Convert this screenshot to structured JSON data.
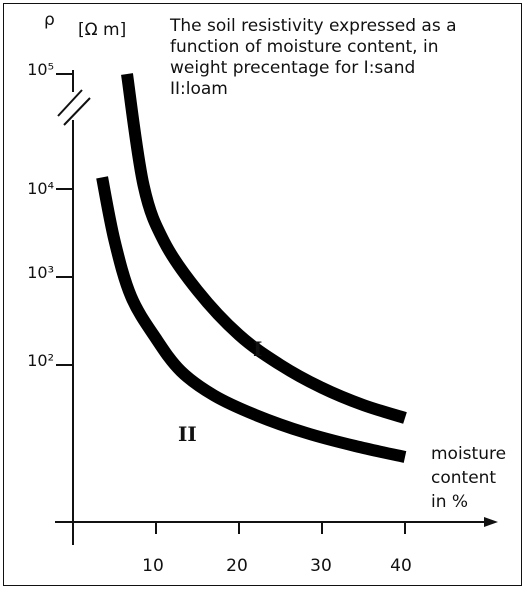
{
  "chart_data": {
    "type": "line",
    "title_lines": [
      "The soil resistivity expressed as a",
      "function of moisture content, in",
      "weight precentage for I:sand",
      "II:loam"
    ],
    "ylabel_symbol": "ρ",
    "ylabel_unit": "[Ω m]",
    "xlabel_lines": [
      "moisture",
      "content",
      "in %"
    ],
    "y_scale": "log (broken axis between 10^4 and 10^5)",
    "y_ticks": [
      {
        "label": "10²",
        "value": 100
      },
      {
        "label": "10³",
        "value": 1000
      },
      {
        "label": "10⁴",
        "value": 10000
      },
      {
        "label": "10⁵",
        "value": 100000
      }
    ],
    "x_ticks": [
      10,
      20,
      30,
      40
    ],
    "xlim": [
      0,
      50
    ],
    "series": [
      {
        "name": "I",
        "points": [
          [
            6.5,
            100000
          ],
          [
            8.5,
            12000
          ],
          [
            11,
            2500
          ],
          [
            15,
            700
          ],
          [
            20,
            220
          ],
          [
            25,
            100
          ],
          [
            30,
            55
          ],
          [
            35,
            35
          ],
          [
            40,
            25
          ]
        ]
      },
      {
        "name": "II",
        "points": [
          [
            3.5,
            14000
          ],
          [
            5,
            2600
          ],
          [
            7,
            600
          ],
          [
            10,
            200
          ],
          [
            13,
            85
          ],
          [
            17,
            45
          ],
          [
            22,
            27
          ],
          [
            28,
            17
          ],
          [
            34,
            12
          ],
          [
            40,
            9
          ]
        ]
      }
    ],
    "grid": false
  }
}
